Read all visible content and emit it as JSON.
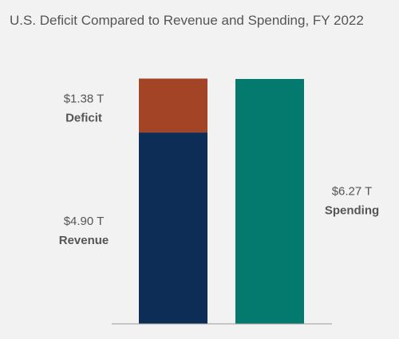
{
  "chart_data": {
    "type": "bar",
    "stacked": true,
    "title": "U.S. Deficit Compared to Revenue and Spending, FY 2022",
    "xlabel": "",
    "ylabel": "",
    "ylim": [
      0,
      6.27
    ],
    "grid": false,
    "legend": "none",
    "unit": "T",
    "bars": [
      {
        "segments": [
          {
            "name": "Revenue",
            "value": 4.9,
            "value_label": "$4.90 T",
            "color": "#0d2d57"
          },
          {
            "name": "Deficit",
            "value": 1.38,
            "value_label": "$1.38 T",
            "color": "#a44426"
          }
        ]
      },
      {
        "segments": [
          {
            "name": "Spending",
            "value": 6.27,
            "value_label": "$6.27 T",
            "color": "#047a6e"
          }
        ]
      }
    ]
  }
}
